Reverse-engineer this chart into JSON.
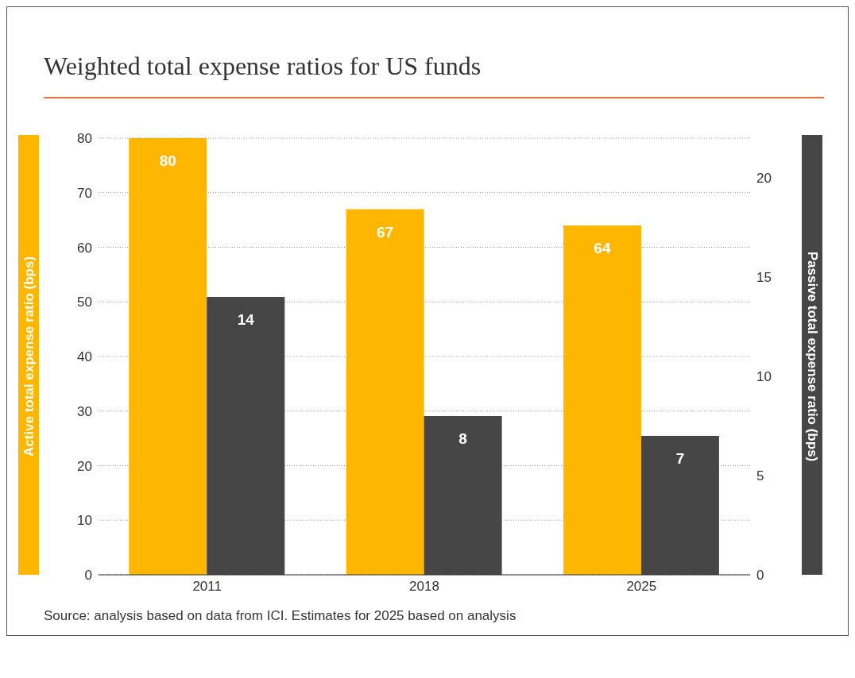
{
  "chart_data": {
    "type": "bar",
    "title": "Weighted total expense ratios for US funds",
    "categories": [
      "2011",
      "2018",
      "2025"
    ],
    "series": [
      {
        "color": "#ffb600",
        "values": [
          80,
          67,
          64
        ]
      },
      {
        "color": "#464646",
        "values": [
          14,
          8,
          7
        ],
        "axis": "y2"
      }
    ],
    "ylabel": "Active total expense ratio (bps)",
    "y2label": "Passive total expense ratio (bps)",
    "ylim": [
      0,
      80
    ],
    "yticks": [
      0,
      10,
      20,
      30,
      40,
      50,
      60,
      70,
      80
    ],
    "y2lim": [
      0,
      22
    ],
    "y2ticks": [
      0,
      5,
      10,
      15,
      20
    ],
    "grid": "y",
    "data_labels": true,
    "annotations": [
      "Source: analysis based on data from ICI. Estimates for 2025 based on analysis"
    ]
  }
}
